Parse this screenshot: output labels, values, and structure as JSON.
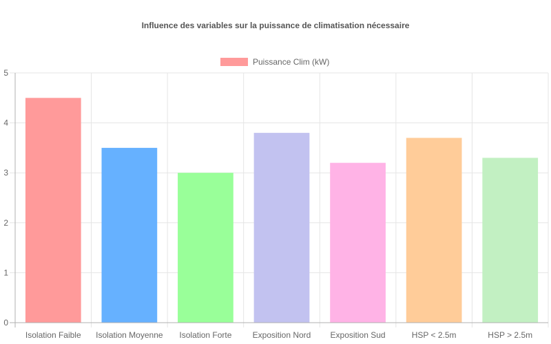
{
  "chart_data": {
    "type": "bar",
    "title": "Influence des variables sur la puissance de climatisation nécessaire",
    "xlabel": "",
    "ylabel": "",
    "categories": [
      "Isolation Faible",
      "Isolation Moyenne",
      "Isolation Forte",
      "Exposition Nord",
      "Exposition Sud",
      "HSP < 2.5m",
      "HSP > 2.5m"
    ],
    "series": [
      {
        "name": "Puissance Clim (kW)",
        "values": [
          4.5,
          3.5,
          3.0,
          3.8,
          3.2,
          3.7,
          3.3
        ]
      }
    ],
    "bar_colors": [
      "#ff9a9a",
      "#66b1ff",
      "#99ff99",
      "#c2c2f0",
      "#ffb3e6",
      "#ffcc99",
      "#c2f0c2"
    ],
    "legend_color": "#ff9a9a",
    "ylim": [
      0,
      5
    ],
    "yticks": [
      "0",
      "1",
      "2",
      "3",
      "4",
      "5"
    ],
    "grid": true,
    "legend_position": "top"
  }
}
